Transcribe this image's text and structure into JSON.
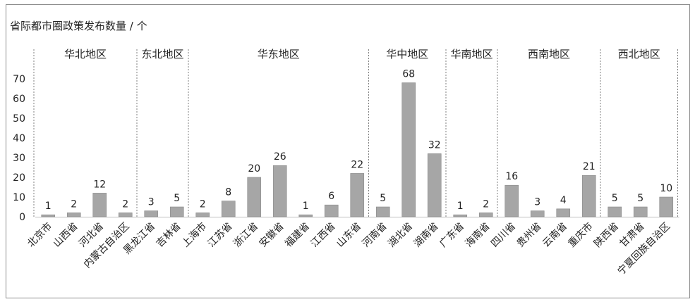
{
  "chart_data": {
    "type": "bar",
    "title": "省际都市圈政策发布数量 / 个",
    "ylim": [
      0,
      70
    ],
    "yticks": [
      0,
      10,
      20,
      30,
      40,
      50,
      60,
      70
    ],
    "categories": [
      "北京市",
      "山西省",
      "河北省",
      "内蒙古自治区",
      "黑龙江省",
      "吉林省",
      "上海市",
      "江苏省",
      "浙江省",
      "安徽省",
      "福建省",
      "江西省",
      "山东省",
      "河南省",
      "湖北省",
      "湖南省",
      "广东省",
      "海南省",
      "四川省",
      "贵州省",
      "云南省",
      "重庆市",
      "陕西省",
      "甘肃省",
      "宁夏回族自治区"
    ],
    "values": [
      1,
      2,
      12,
      2,
      3,
      5,
      2,
      8,
      20,
      26,
      1,
      6,
      22,
      5,
      68,
      32,
      1,
      2,
      16,
      3,
      4,
      21,
      5,
      5,
      10
    ],
    "regions": [
      {
        "name": "华北地区",
        "count": 4
      },
      {
        "name": "东北地区",
        "count": 2
      },
      {
        "name": "华东地区",
        "count": 7
      },
      {
        "name": "华中地区",
        "count": 3
      },
      {
        "name": "华南地区",
        "count": 2
      },
      {
        "name": "西南地区",
        "count": 4
      },
      {
        "name": "西北地区",
        "count": 3
      }
    ],
    "bar_color": "#a6a6a6",
    "grid": false,
    "legend": "none"
  }
}
